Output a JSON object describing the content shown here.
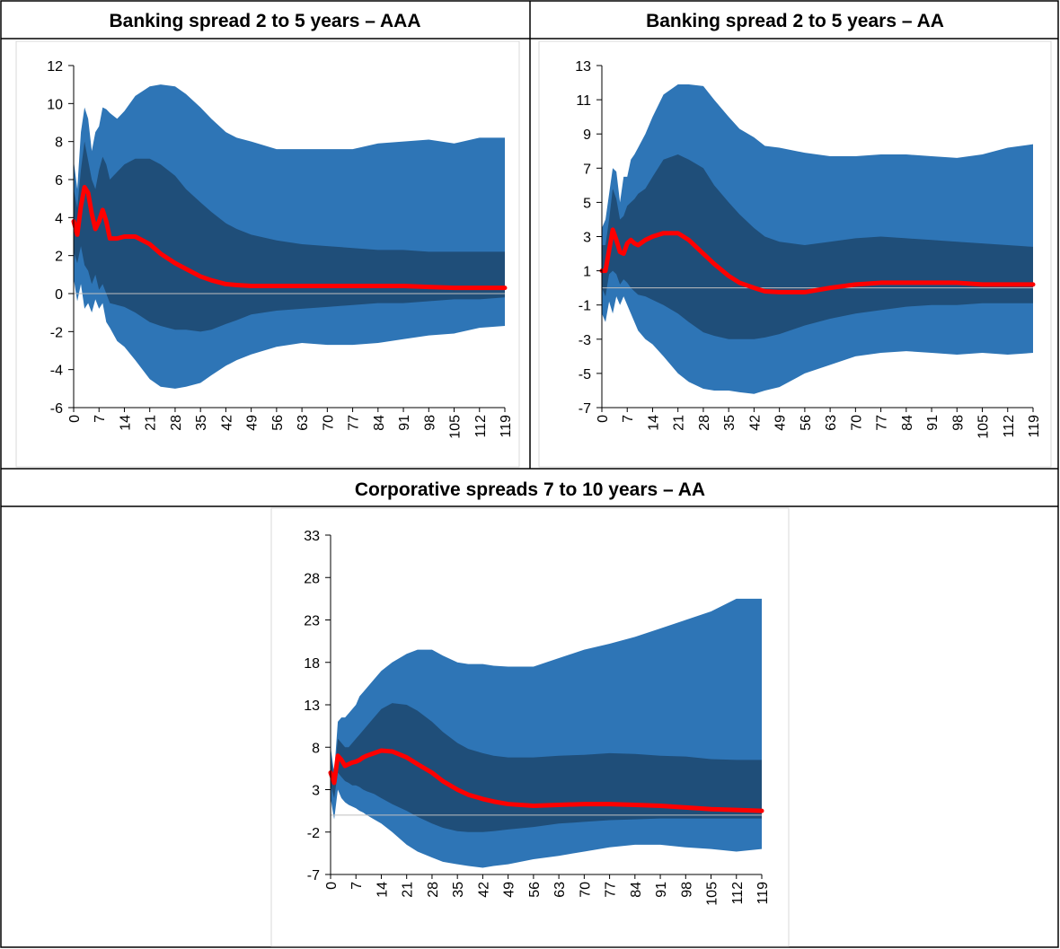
{
  "chart_data": [
    {
      "type": "fan",
      "title": "Banking spread 2 to 5 years – AAA",
      "x": [
        0,
        1,
        2,
        3,
        4,
        5,
        6,
        7,
        8,
        9,
        10,
        12,
        14,
        17,
        21,
        24,
        28,
        31,
        35,
        38,
        42,
        45,
        49,
        56,
        63,
        70,
        77,
        84,
        91,
        98,
        105,
        112,
        119
      ],
      "xlim": [
        0,
        119
      ],
      "xticks": [
        0,
        7,
        14,
        21,
        28,
        35,
        42,
        49,
        56,
        63,
        70,
        77,
        84,
        91,
        98,
        105,
        112,
        119
      ],
      "ylim": [
        -6,
        12
      ],
      "yticks": [
        -6,
        -4,
        -2,
        0,
        2,
        4,
        6,
        8,
        10,
        12
      ],
      "series": [
        {
          "color": "#2e75b6",
          "upper": [
            7.0,
            5.5,
            8.5,
            9.8,
            9.2,
            7.5,
            8.5,
            8.8,
            9.8,
            9.7,
            9.5,
            9.2,
            9.6,
            10.4,
            10.9,
            11.0,
            10.9,
            10.5,
            9.8,
            9.2,
            8.5,
            8.2,
            8.0,
            7.6,
            7.6,
            7.6,
            7.6,
            7.9,
            8.0,
            8.1,
            7.9,
            8.2,
            8.2
          ],
          "lower": [
            0.8,
            -0.4,
            0.5,
            -0.8,
            -0.5,
            -1.0,
            -0.3,
            -0.8,
            -0.5,
            -1.5,
            -1.8,
            -2.5,
            -2.8,
            -3.5,
            -4.5,
            -4.9,
            -5.0,
            -4.9,
            -4.7,
            -4.3,
            -3.8,
            -3.5,
            -3.2,
            -2.8,
            -2.6,
            -2.7,
            -2.7,
            -2.6,
            -2.4,
            -2.2,
            -2.1,
            -1.8,
            -1.7
          ]
        },
        {
          "color": "#1f4e79",
          "upper": [
            5.5,
            4.5,
            6.5,
            8.0,
            7.0,
            6.0,
            5.5,
            6.5,
            7.2,
            6.8,
            6.0,
            6.4,
            6.8,
            7.1,
            7.1,
            6.8,
            6.2,
            5.5,
            4.8,
            4.3,
            3.7,
            3.4,
            3.1,
            2.8,
            2.6,
            2.5,
            2.4,
            2.3,
            2.3,
            2.2,
            2.2,
            2.2,
            2.2
          ],
          "lower": [
            2.2,
            1.6,
            2.5,
            1.5,
            1.2,
            0.5,
            1.0,
            0.2,
            0.5,
            0.0,
            -0.5,
            -0.6,
            -0.7,
            -1.0,
            -1.5,
            -1.7,
            -1.9,
            -1.9,
            -2.0,
            -1.9,
            -1.6,
            -1.4,
            -1.1,
            -0.9,
            -0.8,
            -0.7,
            -0.6,
            -0.5,
            -0.5,
            -0.4,
            -0.3,
            -0.3,
            -0.2
          ]
        },
        {
          "color": "#ff0000",
          "values": [
            3.8,
            3.1,
            4.6,
            5.6,
            5.3,
            4.2,
            3.4,
            3.8,
            4.4,
            3.8,
            2.9,
            2.9,
            3.0,
            3.0,
            2.6,
            2.1,
            1.6,
            1.3,
            0.9,
            0.7,
            0.5,
            0.45,
            0.4,
            0.4,
            0.4,
            0.4,
            0.4,
            0.4,
            0.4,
            0.35,
            0.3,
            0.3,
            0.3
          ]
        }
      ]
    },
    {
      "type": "fan",
      "title": "Banking spread 2 to 5 years – AA",
      "x": [
        0,
        1,
        2,
        3,
        4,
        5,
        6,
        7,
        8,
        9,
        10,
        12,
        14,
        17,
        21,
        24,
        28,
        31,
        35,
        38,
        42,
        45,
        49,
        56,
        63,
        70,
        77,
        84,
        91,
        98,
        105,
        112,
        119
      ],
      "xlim": [
        0,
        119
      ],
      "xticks": [
        0,
        7,
        14,
        21,
        28,
        35,
        42,
        49,
        56,
        63,
        70,
        77,
        84,
        91,
        98,
        105,
        112,
        119
      ],
      "ylim": [
        -7,
        13
      ],
      "yticks": [
        -7,
        -5,
        -3,
        -1,
        1,
        3,
        5,
        7,
        9,
        11,
        13
      ],
      "series": [
        {
          "color": "#2e75b6",
          "upper": [
            3.5,
            4.0,
            5.5,
            7.0,
            6.8,
            5.0,
            6.5,
            6.5,
            7.5,
            7.8,
            8.2,
            9.0,
            10.0,
            11.3,
            11.9,
            11.9,
            11.8,
            11.0,
            10.0,
            9.3,
            8.8,
            8.3,
            8.2,
            7.9,
            7.7,
            7.7,
            7.8,
            7.8,
            7.7,
            7.6,
            7.8,
            8.2,
            8.4
          ],
          "lower": [
            -1.5,
            -2.0,
            -0.8,
            -1.5,
            -0.5,
            -1.0,
            -0.5,
            -1.0,
            -1.5,
            -2.0,
            -2.5,
            -3.0,
            -3.3,
            -4.0,
            -5.0,
            -5.5,
            -5.9,
            -6.0,
            -6.0,
            -6.1,
            -6.2,
            -6.0,
            -5.8,
            -5.0,
            -4.5,
            -4.0,
            -3.8,
            -3.7,
            -3.8,
            -3.9,
            -3.8,
            -3.9,
            -3.8
          ]
        },
        {
          "color": "#1f4e79",
          "upper": [
            2.5,
            2.5,
            4.0,
            5.8,
            5.2,
            4.0,
            4.2,
            4.8,
            5.0,
            5.2,
            5.5,
            5.8,
            6.5,
            7.5,
            7.8,
            7.5,
            7.0,
            6.0,
            5.0,
            4.3,
            3.5,
            3.0,
            2.7,
            2.5,
            2.7,
            2.9,
            3.0,
            2.9,
            2.8,
            2.7,
            2.6,
            2.5,
            2.4
          ],
          "lower": [
            0.0,
            -0.5,
            0.8,
            1.0,
            0.8,
            0.2,
            0.5,
            0.3,
            0.0,
            -0.2,
            -0.4,
            -0.5,
            -0.7,
            -1.0,
            -1.5,
            -2.0,
            -2.6,
            -2.8,
            -3.0,
            -3.0,
            -3.0,
            -2.9,
            -2.7,
            -2.2,
            -1.8,
            -1.5,
            -1.3,
            -1.1,
            -1.0,
            -1.0,
            -0.9,
            -0.9,
            -0.9
          ]
        },
        {
          "color": "#ff0000",
          "values": [
            1.0,
            1.0,
            2.2,
            3.4,
            2.8,
            2.1,
            2.0,
            2.6,
            2.8,
            2.6,
            2.5,
            2.8,
            3.0,
            3.2,
            3.2,
            2.8,
            2.0,
            1.4,
            0.7,
            0.3,
            0.0,
            -0.2,
            -0.25,
            -0.25,
            0.0,
            0.2,
            0.3,
            0.3,
            0.3,
            0.3,
            0.2,
            0.2,
            0.2
          ]
        }
      ]
    },
    {
      "type": "fan",
      "title": "Corporative spreads 7 to 10 years – AA",
      "x": [
        0,
        1,
        2,
        3,
        4,
        5,
        6,
        7,
        8,
        9,
        10,
        12,
        14,
        17,
        21,
        24,
        28,
        31,
        35,
        38,
        42,
        45,
        49,
        56,
        63,
        70,
        77,
        84,
        91,
        98,
        105,
        112,
        119
      ],
      "xlim": [
        0,
        119
      ],
      "xticks": [
        0,
        7,
        14,
        21,
        28,
        35,
        42,
        49,
        56,
        63,
        70,
        77,
        84,
        91,
        98,
        105,
        112,
        119
      ],
      "ylim": [
        -7,
        33
      ],
      "yticks": [
        -7,
        -2,
        3,
        8,
        13,
        18,
        23,
        28,
        33
      ],
      "series": [
        {
          "color": "#2e75b6",
          "upper": [
            8.0,
            5.0,
            11.0,
            11.5,
            11.5,
            12.0,
            12.5,
            13.0,
            14.0,
            14.5,
            15.0,
            16.0,
            17.0,
            18.0,
            19.0,
            19.5,
            19.5,
            18.8,
            18.0,
            17.8,
            17.8,
            17.6,
            17.5,
            17.5,
            18.5,
            19.5,
            20.2,
            21.0,
            22.0,
            23.0,
            24.0,
            25.5,
            25.5
          ],
          "lower": [
            2.0,
            -0.5,
            3.0,
            2.0,
            1.5,
            1.2,
            1.0,
            0.8,
            0.5,
            0.3,
            0.0,
            -0.5,
            -1.0,
            -2.0,
            -3.5,
            -4.3,
            -5.0,
            -5.5,
            -5.8,
            -6.0,
            -6.2,
            -6.0,
            -5.8,
            -5.2,
            -4.8,
            -4.3,
            -3.8,
            -3.5,
            -3.5,
            -3.8,
            -4.0,
            -4.3,
            -4.0
          ]
        },
        {
          "color": "#1f4e79",
          "upper": [
            6.8,
            4.5,
            9.0,
            8.5,
            8.0,
            8.0,
            8.5,
            9.0,
            9.5,
            10.0,
            10.5,
            11.5,
            12.5,
            13.2,
            13.0,
            12.3,
            11.0,
            9.8,
            8.5,
            7.8,
            7.3,
            7.0,
            6.8,
            6.8,
            7.0,
            7.1,
            7.3,
            7.2,
            7.0,
            6.9,
            6.6,
            6.5,
            6.5
          ],
          "lower": [
            3.5,
            2.0,
            5.0,
            4.5,
            4.0,
            3.8,
            3.5,
            3.5,
            3.3,
            3.0,
            2.8,
            2.5,
            2.0,
            1.3,
            0.5,
            -0.2,
            -1.0,
            -1.5,
            -1.9,
            -2.0,
            -2.0,
            -1.9,
            -1.7,
            -1.4,
            -1.0,
            -0.8,
            -0.6,
            -0.5,
            -0.4,
            -0.4,
            -0.4,
            -0.4,
            -0.4
          ]
        },
        {
          "color": "#ff0000",
          "values": [
            5.0,
            3.8,
            7.0,
            6.5,
            5.8,
            6.0,
            6.2,
            6.3,
            6.5,
            6.8,
            7.0,
            7.3,
            7.6,
            7.5,
            6.8,
            6.0,
            5.0,
            4.0,
            3.0,
            2.4,
            1.9,
            1.6,
            1.3,
            1.1,
            1.2,
            1.3,
            1.3,
            1.2,
            1.1,
            0.9,
            0.7,
            0.6,
            0.5
          ]
        }
      ]
    }
  ]
}
